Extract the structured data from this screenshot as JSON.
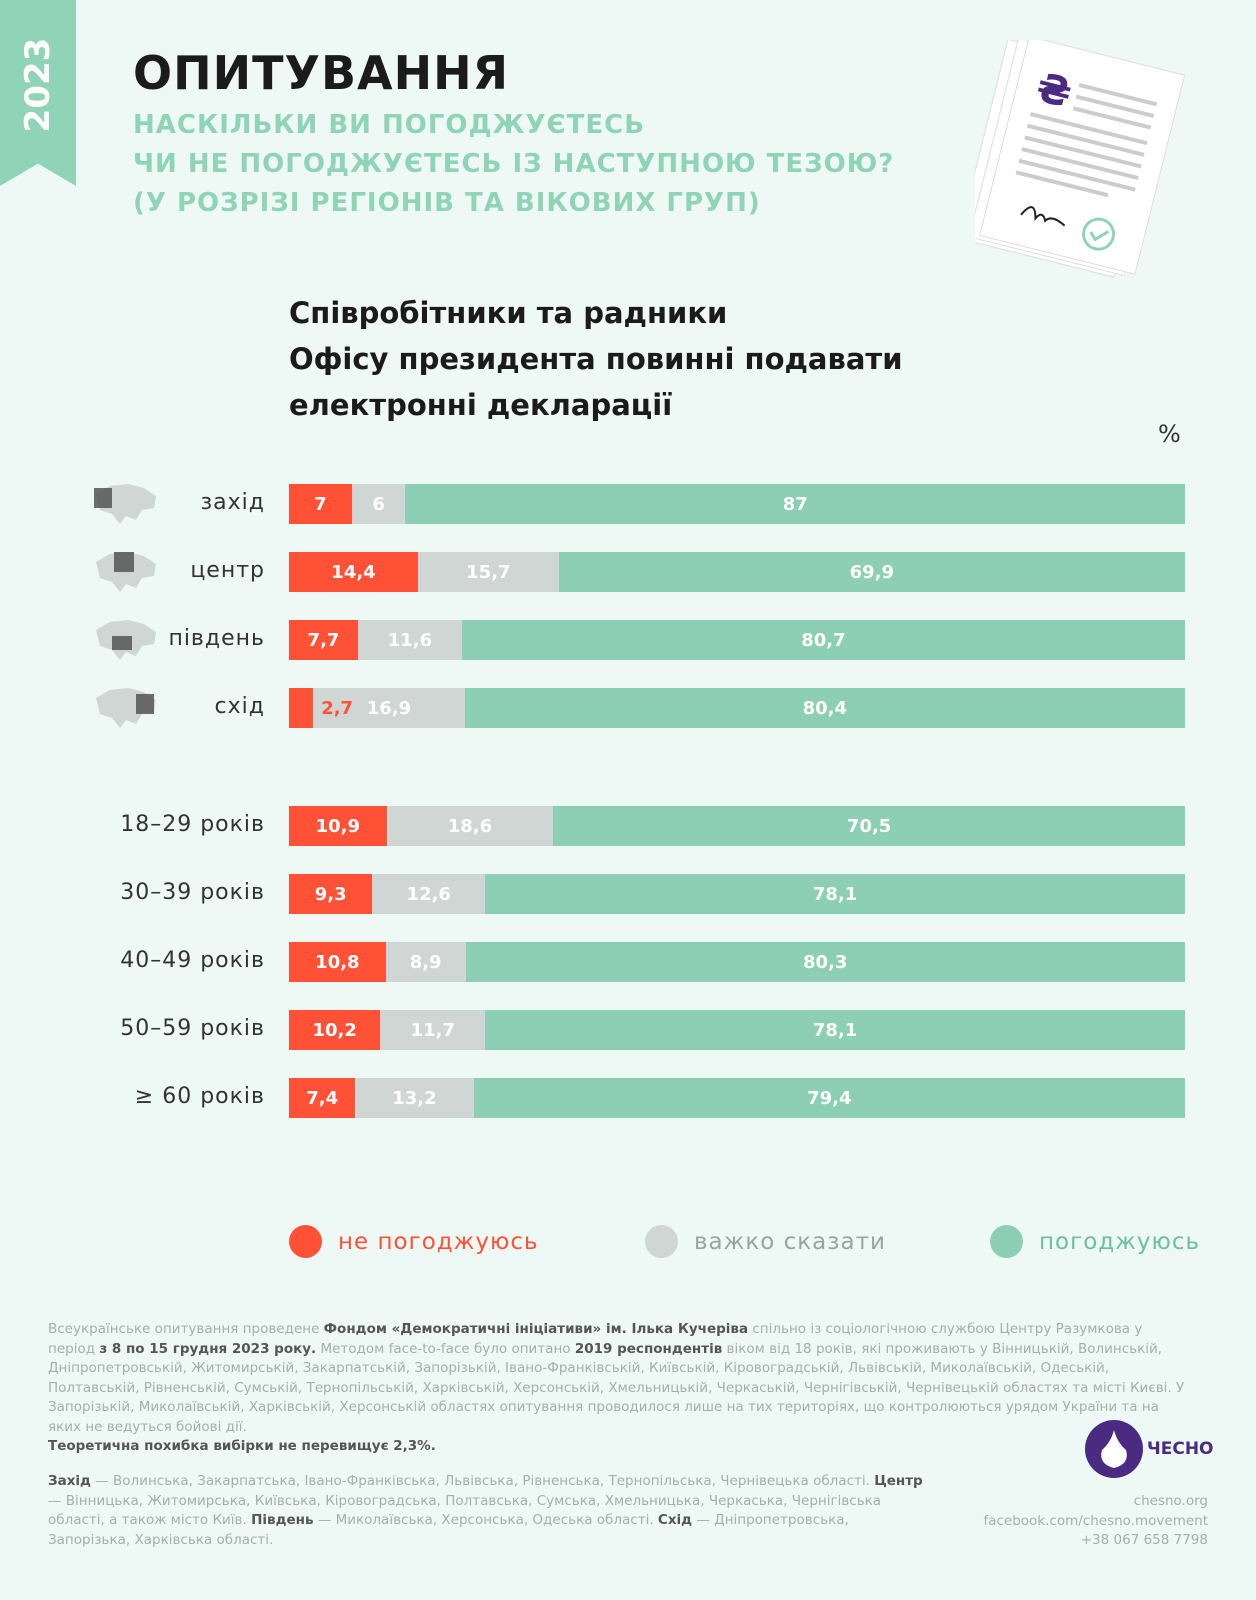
{
  "header": {
    "year": "2023",
    "title": "ОПИТУВАННЯ",
    "subtitle": [
      "НАСКІЛЬКИ ВИ ПОГОДЖУЄТЕСЬ",
      "ЧИ НЕ ПОГОДЖУЄТЕСЬ ІЗ НАСТУПНОЮ ТЕЗОЮ?",
      "(У РОЗРІЗІ РЕГІОНІВ ТА ВІКОВИХ ГРУП)"
    ]
  },
  "chart_data": {
    "type": "bar",
    "stacked": true,
    "orientation": "horizontal",
    "title": [
      "Співробітники та радники",
      "Офісу президента повинні подавати",
      "електронні декларації"
    ],
    "unit": "%",
    "categories": [
      "захід",
      "центр",
      "південь",
      "схід",
      "18–29 років",
      "30–39 років",
      "40–49 років",
      "50–59 років",
      "≥ 60 років"
    ],
    "series": [
      {
        "name": "не погоджуюсь",
        "color": "#ff5136",
        "values": [
          7,
          14.4,
          7.7,
          2.7,
          10.9,
          9.3,
          10.8,
          10.2,
          7.4
        ],
        "labels": [
          "7",
          "14,4",
          "7,7",
          "2,7",
          "10,9",
          "9,3",
          "10,8",
          "10,2",
          "7,4"
        ]
      },
      {
        "name": "важко сказати",
        "color": "#d0d6d4",
        "values": [
          6,
          15.7,
          11.6,
          16.9,
          18.6,
          12.6,
          8.9,
          11.7,
          13.2
        ],
        "labels": [
          "6",
          "15,7",
          "11,6",
          "16,9",
          "18,6",
          "12,6",
          "8,9",
          "11,7",
          "13,2"
        ]
      },
      {
        "name": "погоджуюсь",
        "color": "#8ccfb5",
        "values": [
          87,
          69.9,
          80.7,
          80.4,
          70.5,
          78.1,
          80.3,
          78.1,
          79.4
        ],
        "labels": [
          "87",
          "69,9",
          "80,7",
          "80,4",
          "70,5",
          "78,1",
          "80,3",
          "78,1",
          "79,4"
        ]
      }
    ],
    "legend": "bottom"
  },
  "footer": {
    "p1": [
      [
        "Всеукраїнське опитування проведене ",
        0
      ],
      [
        "Фондом «Демократичні ініціативи» ім. Ілька Кучеріва",
        1
      ],
      [
        " спільно із соціологічною службою Центру Разумкова у період ",
        0
      ],
      [
        "з 8 по 15 грудня 2023 року.",
        1
      ],
      [
        " Методом face-to-face було опитано ",
        0
      ],
      [
        "2019 респондентів",
        1
      ],
      [
        " віком від 18 років, які проживають у Вінницькій, Волинській, Дніпропетровській, Житомирській, Закарпатській, Запорізькій, Івано-Франківській, Київській, Кіровоградській, Львівській, Миколаївській, Одеській, Полтавській, Рівненській, Сумській, Тернопільській, Харківській, Херсонській, Хмельницькій, Черкаській, Чернігівській, Чернівецькій областях та місті Києві. У Запорізькій, Миколаївській, Харківській, Херсонській областях опитування проводилося лише на тих територіях, що контролюються урядом України та на яких не ведуться бойові дії.",
        0
      ]
    ],
    "error": "Теоретична похибка вибірки не перевищує 2,3%.",
    "p2": [
      [
        "Захід",
        1
      ],
      [
        " — Волинська, Закарпатська, Івано-Франківська, Львівська, Рівненська, Тернопільська, Чернівецька області. ",
        0
      ],
      [
        "Центр",
        1
      ],
      [
        " — Вінницька, Житомирська, Київська, Кіровоградська, Полтавська, Сумська, Хмельницька, Черкаська, Чернігівська області, а також місто Київ. ",
        0
      ],
      [
        "Південь",
        1
      ],
      [
        " — Миколаївська, Херсонська, Одеська області. ",
        0
      ],
      [
        "Схід",
        1
      ],
      [
        " — Дніпропетровська, Запорізька, Харківська області.",
        0
      ]
    ]
  },
  "brand": {
    "name": "ЧЕСНО",
    "site": "chesno.org",
    "facebook": "facebook.com/chesno.movement",
    "phone": "+38 067 658 7798"
  }
}
